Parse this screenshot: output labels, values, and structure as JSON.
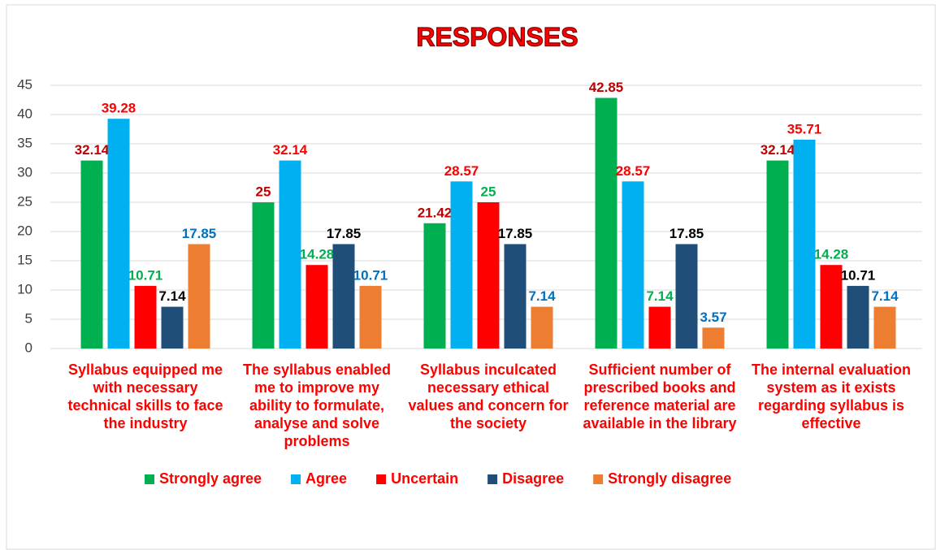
{
  "chart_data": {
    "type": "bar",
    "title": "RESPONSES",
    "categories": [
      "Syllabus equipped me with necessary technical skills to face the industry",
      "The syllabus enabled me to improve my ability to formulate, analyse and solve problems",
      "Syllabus inculcated necessary ethical values and concern for the society",
      "Sufficient number of prescribed books and reference material are available in the library",
      "The internal evaluation system as it exists regarding syllabus is effective"
    ],
    "series": [
      {
        "name": "Strongly agree",
        "color": "#00b050",
        "label_color": "#c00000",
        "values": [
          32.14,
          25,
          21.42,
          42.85,
          32.14
        ]
      },
      {
        "name": "Agree",
        "color": "#00b0f0",
        "label_color": "#ff0000",
        "values": [
          39.28,
          32.14,
          28.57,
          28.57,
          35.71
        ]
      },
      {
        "name": "Uncertain",
        "color": "#ff0000",
        "label_color": "#00b050",
        "values": [
          10.71,
          14.28,
          25,
          7.14,
          14.28
        ]
      },
      {
        "name": "Disagree",
        "color": "#1f4e79",
        "label_color": "#000000",
        "values": [
          7.14,
          17.85,
          17.85,
          17.85,
          10.71
        ]
      },
      {
        "name": "Strongly disagree",
        "color": "#ed7d31",
        "label_color": "#0070c0",
        "values": [
          17.85,
          10.71,
          7.14,
          3.57,
          7.14
        ]
      }
    ],
    "ylim": [
      0,
      45
    ],
    "yticks": [
      0,
      5,
      10,
      15,
      20,
      25,
      30,
      35,
      40,
      45
    ],
    "grid": true,
    "legend": "bottom"
  }
}
